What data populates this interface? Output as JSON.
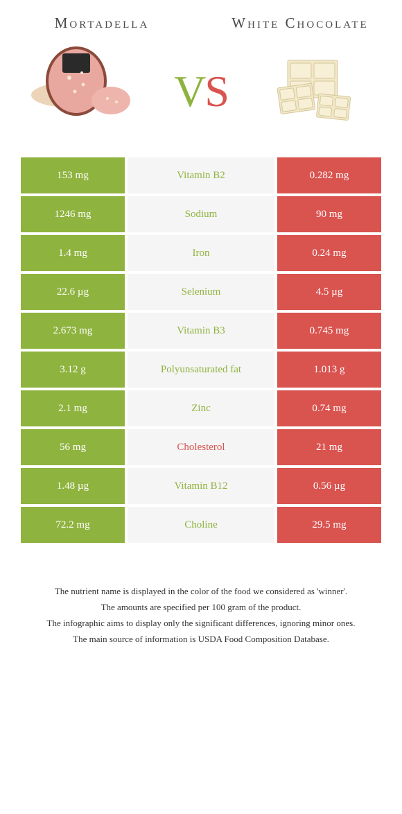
{
  "food_left": {
    "name": "Mortadella",
    "color": "#8fb33f"
  },
  "food_right": {
    "name": "White Chocolate",
    "color": "#d9534f"
  },
  "vs": {
    "v": "V",
    "s": "S"
  },
  "colors": {
    "left": "#8fb33f",
    "right": "#d9534f",
    "middle_bg": "#f5f5f5",
    "nutrient_left_winner": "#8fb33f",
    "nutrient_right_winner": "#d9534f"
  },
  "rows": [
    {
      "left": "153 mg",
      "nutrient": "Vitamin B2",
      "right": "0.282 mg",
      "winner": "left"
    },
    {
      "left": "1246 mg",
      "nutrient": "Sodium",
      "right": "90 mg",
      "winner": "left"
    },
    {
      "left": "1.4 mg",
      "nutrient": "Iron",
      "right": "0.24 mg",
      "winner": "left"
    },
    {
      "left": "22.6 µg",
      "nutrient": "Selenium",
      "right": "4.5 µg",
      "winner": "left"
    },
    {
      "left": "2.673 mg",
      "nutrient": "Vitamin B3",
      "right": "0.745 mg",
      "winner": "left"
    },
    {
      "left": "3.12 g",
      "nutrient": "Polyunsaturated fat",
      "right": "1.013 g",
      "winner": "left"
    },
    {
      "left": "2.1 mg",
      "nutrient": "Zinc",
      "right": "0.74 mg",
      "winner": "left"
    },
    {
      "left": "56 mg",
      "nutrient": "Cholesterol",
      "right": "21 mg",
      "winner": "right"
    },
    {
      "left": "1.48 µg",
      "nutrient": "Vitamin B12",
      "right": "0.56 µg",
      "winner": "left"
    },
    {
      "left": "72.2 mg",
      "nutrient": "Choline",
      "right": "29.5 mg",
      "winner": "left"
    }
  ],
  "footer": {
    "line1": "The nutrient name is displayed in the color of the food we considered as 'winner'.",
    "line2": "The amounts are specified per 100 gram of the product.",
    "line3": "The infographic aims to display only the significant differences, ignoring minor ones.",
    "line4": "The main source of information is USDA Food Composition Database."
  }
}
